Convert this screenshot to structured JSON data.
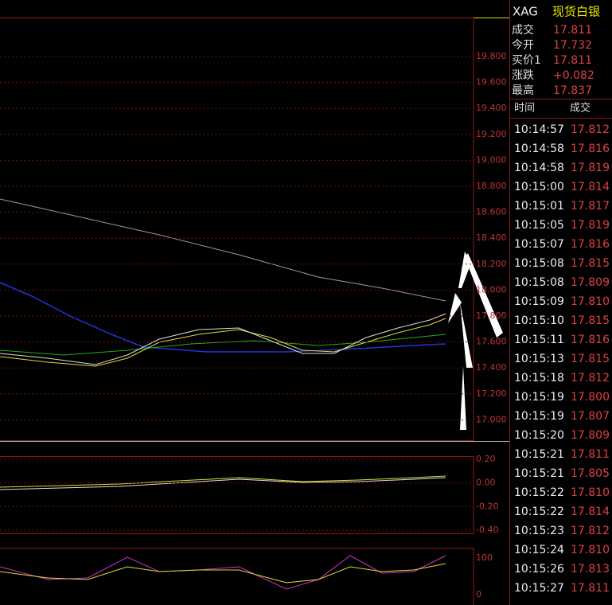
{
  "chart_panel": {
    "price_axis": [
      "19.800",
      "19.600",
      "19.400",
      "19.200",
      "19.000",
      "18.800",
      "18.600",
      "18.400",
      "18.200",
      "18.000",
      "17.800",
      "17.600",
      "17.400",
      "17.200",
      "17.000"
    ],
    "macd_axis": [
      "0.20",
      "0.00",
      "-0.20",
      "-0.40"
    ],
    "kdj_axis": [
      "100",
      "0"
    ]
  },
  "quote_panel": {
    "symbol": "XAG",
    "name": "现货白银",
    "fields": [
      {
        "label": "成交",
        "value": "17.811"
      },
      {
        "label": "今开",
        "value": "17.732"
      },
      {
        "label": "买价1",
        "value": "17.811"
      },
      {
        "label": "涨跌",
        "value": "+0.082"
      },
      {
        "label": "最高",
        "value": "17.837"
      }
    ]
  },
  "trades": {
    "headers": [
      "时间",
      "成交"
    ],
    "rows": [
      [
        "10:14:57",
        "17.812"
      ],
      [
        "10:14:58",
        "17.816"
      ],
      [
        "10:14:58",
        "17.819"
      ],
      [
        "10:15:00",
        "17.814"
      ],
      [
        "10:15:01",
        "17.817"
      ],
      [
        "10:15:05",
        "17.819"
      ],
      [
        "10:15:07",
        "17.816"
      ],
      [
        "10:15:08",
        "17.815"
      ],
      [
        "10:15:08",
        "17.809"
      ],
      [
        "10:15:09",
        "17.810"
      ],
      [
        "10:15:10",
        "17.815"
      ],
      [
        "10:15:11",
        "17.816"
      ],
      [
        "10:15:13",
        "17.815"
      ],
      [
        "10:15:18",
        "17.812"
      ],
      [
        "10:15:19",
        "17.800"
      ],
      [
        "10:15:19",
        "17.807"
      ],
      [
        "10:15:20",
        "17.809"
      ],
      [
        "10:15:21",
        "17.811"
      ],
      [
        "10:15:21",
        "17.805"
      ],
      [
        "10:15:22",
        "17.810"
      ],
      [
        "10:15:22",
        "17.814"
      ],
      [
        "10:15:23",
        "17.812"
      ],
      [
        "10:15:24",
        "17.810"
      ],
      [
        "10:15:26",
        "17.813"
      ],
      [
        "10:15:27",
        "17.811"
      ]
    ]
  }
}
